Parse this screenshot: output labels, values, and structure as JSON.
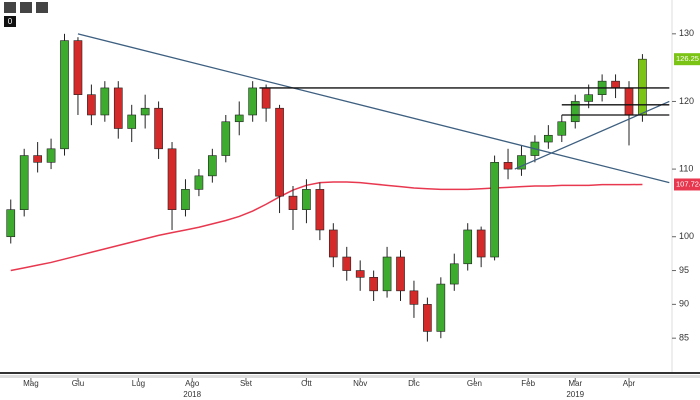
{
  "toolbar_label": "0",
  "chart_data": {
    "type": "candlestick",
    "open": [
      100,
      104,
      112,
      111,
      113,
      129,
      121,
      118,
      122,
      116,
      118,
      119,
      113,
      104,
      107,
      109,
      112,
      117,
      118,
      122,
      119,
      106,
      104,
      107,
      101,
      97,
      95,
      94,
      92,
      97,
      92,
      90,
      86,
      93,
      96,
      101,
      97,
      111,
      110,
      112,
      114,
      115,
      117,
      120,
      121,
      123,
      122,
      118
    ],
    "high": [
      105.5,
      113,
      114,
      114.5,
      130,
      129.5,
      122.5,
      123,
      123,
      119.5,
      121,
      120,
      114,
      108.5,
      110,
      113,
      118,
      120,
      123,
      122.5,
      119.5,
      107.5,
      108.5,
      108,
      102,
      98.5,
      96.5,
      95,
      98.5,
      98,
      93.5,
      91,
      94,
      97.5,
      102,
      101.5,
      112,
      113,
      113.5,
      115,
      116.5,
      118,
      121,
      122.5,
      124,
      124,
      123,
      127
    ],
    "low": [
      99,
      103,
      109.5,
      110,
      112,
      118,
      116.5,
      117,
      114.5,
      114,
      116,
      111.5,
      101,
      103,
      106,
      108,
      111,
      115,
      117,
      117,
      103.5,
      101,
      102,
      99.5,
      95.5,
      93.5,
      92,
      90.5,
      91,
      90.5,
      88,
      84.5,
      85,
      92,
      95,
      95.5,
      96.5,
      108.5,
      109,
      111,
      113,
      114,
      116,
      119,
      120,
      120.5,
      113.5,
      117
    ],
    "close": [
      104,
      112,
      111,
      113,
      129,
      121,
      118,
      122,
      116,
      118,
      119,
      113,
      104,
      107,
      109,
      112,
      117,
      118,
      122,
      119,
      106,
      104,
      107,
      101,
      97,
      95,
      94,
      92,
      97,
      92,
      90,
      86,
      93,
      96,
      101,
      97,
      111,
      110,
      112,
      114,
      115,
      117,
      120,
      121,
      123,
      122,
      118,
      126.25
    ],
    "up_color": "#3cab2e",
    "down_color": "#d42a2a",
    "last_color": "#7bc415",
    "ma": {
      "color": "#e8384f",
      "values": [
        95,
        95.4,
        95.8,
        96.2,
        96.7,
        97.2,
        97.7,
        98.2,
        98.7,
        99.2,
        99.7,
        100.2,
        100.6,
        101,
        101.4,
        101.9,
        102.4,
        103,
        103.8,
        104.8,
        105.9,
        106.9,
        107.6,
        108,
        108.1,
        108.1,
        108,
        107.8,
        107.6,
        107.4,
        107.2,
        107.1,
        107,
        107,
        107,
        107.1,
        107.2,
        107.3,
        107.4,
        107.5,
        107.5,
        107.6,
        107.6,
        107.6,
        107.7,
        107.7,
        107.7,
        107.7246
      ]
    },
    "trendlines": [
      {
        "color": "#3d5f80",
        "x": [
          5,
          49
        ],
        "y": [
          130,
          108
        ]
      },
      {
        "color": "#111111",
        "x": [
          18.5,
          49
        ],
        "y": [
          122,
          122
        ]
      },
      {
        "color": "#3d5f80",
        "x": [
          37.5,
          49
        ],
        "y": [
          110,
          120
        ]
      },
      {
        "color": "#111111",
        "x": [
          41,
          49
        ],
        "y": [
          119.5,
          119.5
        ]
      },
      {
        "color": "#111111",
        "x": [
          41,
          49
        ],
        "y": [
          118,
          118
        ]
      }
    ],
    "xlim": [
      -0.8,
      49.2
    ],
    "xticks": [
      {
        "value": 1.5,
        "label": "Mag"
      },
      {
        "value": 5,
        "label": "Giu"
      },
      {
        "value": 9.5,
        "label": "Lug"
      },
      {
        "value": 13.5,
        "label": "Ago"
      },
      {
        "value": 17.5,
        "label": "Set"
      },
      {
        "value": 22,
        "label": "Ott"
      },
      {
        "value": 26,
        "label": "Nov"
      },
      {
        "value": 30,
        "label": "Dic"
      },
      {
        "value": 34.5,
        "label": "Gen"
      },
      {
        "value": 38.5,
        "label": "Feb"
      },
      {
        "value": 42,
        "label": "Mar"
      },
      {
        "value": 46,
        "label": "Apr"
      }
    ],
    "years": [
      {
        "value": 13.5,
        "label": "2018"
      },
      {
        "value": 42,
        "label": "2019"
      }
    ],
    "ylim": [
      80,
      135
    ],
    "yticks": [
      85,
      90,
      95,
      100,
      110,
      120,
      130
    ],
    "grid": false
  }
}
